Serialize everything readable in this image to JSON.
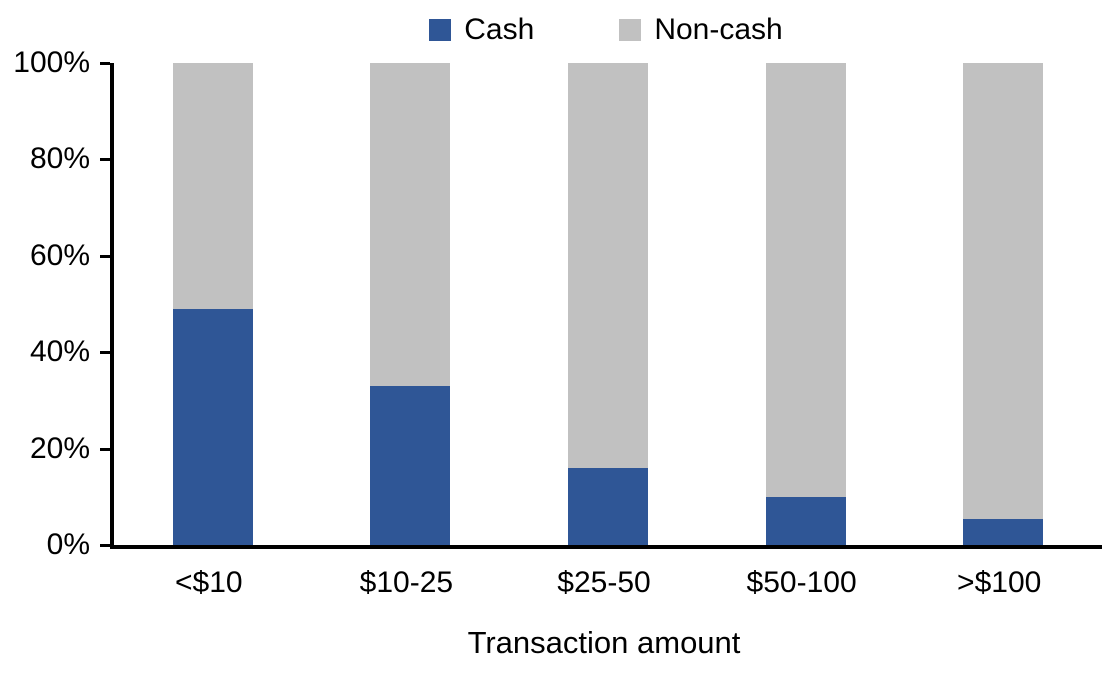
{
  "chart_data": {
    "type": "bar",
    "stacked": true,
    "stacked_total": 100,
    "title": "",
    "xlabel": "Transaction amount",
    "ylabel": "",
    "categories": [
      "<$10",
      "$10-25",
      "$25-50",
      "$50-100",
      ">$100"
    ],
    "series": [
      {
        "name": "Cash",
        "color": "#2F5696",
        "values": [
          49,
          33,
          16,
          10,
          5.5
        ]
      },
      {
        "name": "Non-cash",
        "color": "#C1C1C1",
        "values": [
          51,
          67,
          84,
          90,
          94.5
        ]
      }
    ],
    "ylim": [
      0,
      100
    ],
    "y_tick_step": 20,
    "y_tick_labels": [
      "0%",
      "20%",
      "40%",
      "60%",
      "80%",
      "100%"
    ],
    "grid": false,
    "legend_position": "top-center",
    "axis_color": "#000000"
  }
}
